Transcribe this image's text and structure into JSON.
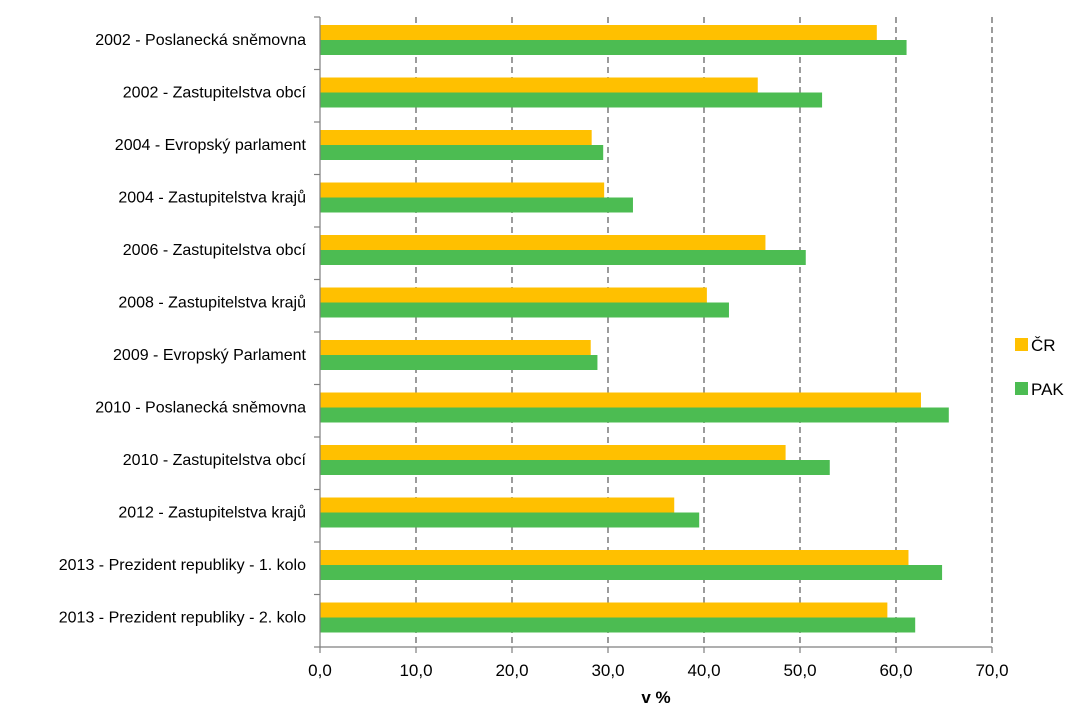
{
  "chart_data": {
    "type": "bar",
    "orientation": "horizontal",
    "categories": [
      "2002 - Poslanecká sněmovna",
      "2002 - Zastupitelstva obcí",
      "2004 - Evropský parlament",
      "2004 - Zastupitelstva krajů",
      "2006 - Zastupitelstva obcí",
      "2008 - Zastupitelstva krajů",
      "2009 - Evropský Parlament",
      "2010 - Poslanecká sněmovna",
      "2010 - Zastupitelstva obcí",
      "2012 - Zastupitelstva krajů",
      "2013 - Prezident republiky - 1. kolo",
      "2013 - Prezident republiky - 2. kolo"
    ],
    "series": [
      {
        "name": "ČR",
        "color": "#FFC000",
        "values": [
          58.0,
          45.6,
          28.3,
          29.6,
          46.4,
          40.3,
          28.2,
          62.6,
          48.5,
          36.9,
          61.3,
          59.1
        ]
      },
      {
        "name": "PAK",
        "color": "#4CBC52",
        "values": [
          61.1,
          52.3,
          29.5,
          32.6,
          50.6,
          42.6,
          28.9,
          65.5,
          53.1,
          39.5,
          64.8,
          62.0
        ]
      }
    ],
    "xlabel": "v %",
    "ylabel": "",
    "xlim": [
      0,
      70
    ],
    "xticks": [
      "0,0",
      "10,0",
      "20,0",
      "30,0",
      "40,0",
      "50,0",
      "60,0",
      "70,0"
    ],
    "grid": "vertical-dashed",
    "legend": "right"
  }
}
